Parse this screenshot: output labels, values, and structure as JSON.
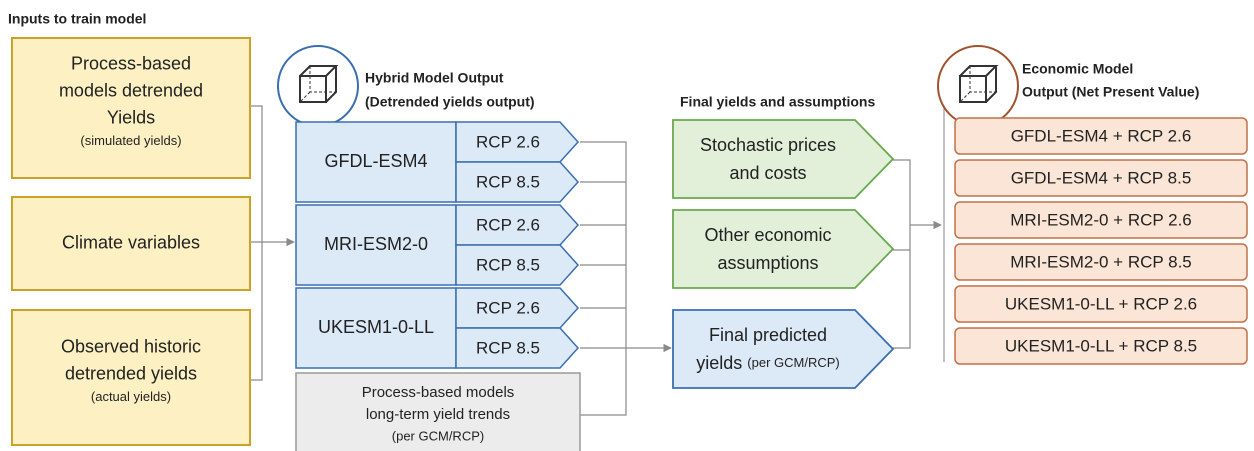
{
  "inputs_title": "Inputs to train model",
  "inputs": [
    {
      "lines": [
        "Process-based",
        "models detrended",
        "Yields"
      ],
      "note": "(simulated yields)"
    },
    {
      "lines": [
        "Climate variables"
      ]
    },
    {
      "lines": [
        "Observed historic",
        "detrended yields"
      ],
      "note": "(actual yields)"
    }
  ],
  "hybrid": {
    "title": [
      "Hybrid Model Output",
      "(Detrended yields output)"
    ],
    "models": [
      {
        "name": "GFDL-ESM4",
        "rcps": [
          "RCP 2.6",
          "RCP 8.5"
        ]
      },
      {
        "name": "MRI-ESM2-0",
        "rcps": [
          "RCP 2.6",
          "RCP 8.5"
        ]
      },
      {
        "name": "UKESM1-0-LL",
        "rcps": [
          "RCP 2.6",
          "RCP 8.5"
        ]
      }
    ],
    "trend_box": [
      "Process-based models",
      "long-term yield trends",
      "(per GCM/RCP)"
    ]
  },
  "final": {
    "title": "Final yields and assumptions",
    "boxes": [
      {
        "lines": [
          "Stochastic prices",
          "and costs"
        ]
      },
      {
        "lines": [
          "Other economic",
          "assumptions"
        ]
      },
      {
        "lines": [
          "Final predicted",
          "yields"
        ],
        "note": "(per GCM/RCP)"
      }
    ]
  },
  "economic": {
    "title": [
      "Economic Model",
      "Output (Net Present Value)"
    ],
    "outputs": [
      "GFDL-ESM4 + RCP 2.6",
      "GFDL-ESM4 + RCP 8.5",
      "MRI-ESM2-0 + RCP 2.6",
      "MRI-ESM2-0 + RCP 8.5",
      "UKESM1-0-LL + RCP 2.6",
      "UKESM1-0-LL + RCP 8.5"
    ]
  }
}
